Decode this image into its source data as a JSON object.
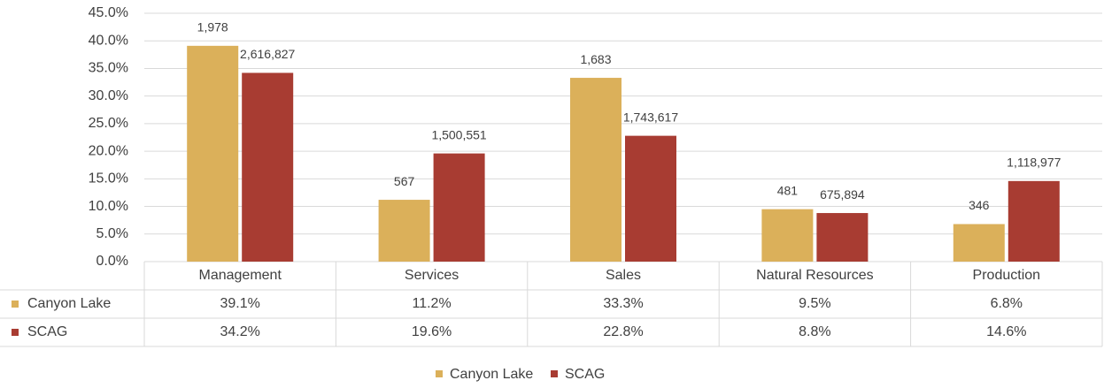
{
  "chart_data": {
    "type": "bar",
    "categories": [
      "Management",
      "Services",
      "Sales",
      "Natural Resources",
      "Production"
    ],
    "series": [
      {
        "name": "Canyon Lake",
        "color": "#dbb05a",
        "values": [
          39.1,
          11.2,
          33.3,
          9.5,
          6.8
        ],
        "value_labels": [
          "39.1%",
          "11.2%",
          "33.3%",
          "9.5%",
          "6.8%"
        ],
        "count_labels": [
          "1,978",
          "567",
          "1,683",
          "481",
          "346"
        ]
      },
      {
        "name": "SCAG",
        "color": "#a83c32",
        "values": [
          34.2,
          19.6,
          22.8,
          8.8,
          14.6
        ],
        "value_labels": [
          "34.2%",
          "19.6%",
          "22.8%",
          "8.8%",
          "14.6%"
        ],
        "count_labels": [
          "2,616,827",
          "1,500,551",
          "1,743,617",
          "675,894",
          "1,118,977"
        ]
      }
    ],
    "ylim": [
      0,
      45
    ],
    "yticks": [
      {
        "value": 0,
        "label": "0.0%"
      },
      {
        "value": 5,
        "label": "5.0%"
      },
      {
        "value": 10,
        "label": "10.0%"
      },
      {
        "value": 15,
        "label": "15.0%"
      },
      {
        "value": 20,
        "label": "20.0%"
      },
      {
        "value": 25,
        "label": "25.0%"
      },
      {
        "value": 30,
        "label": "30.0%"
      },
      {
        "value": 35,
        "label": "35.0%"
      },
      {
        "value": 40,
        "label": "40.0%"
      },
      {
        "value": 45,
        "label": "45.0%"
      }
    ],
    "grid": true,
    "legend": "bottom"
  }
}
